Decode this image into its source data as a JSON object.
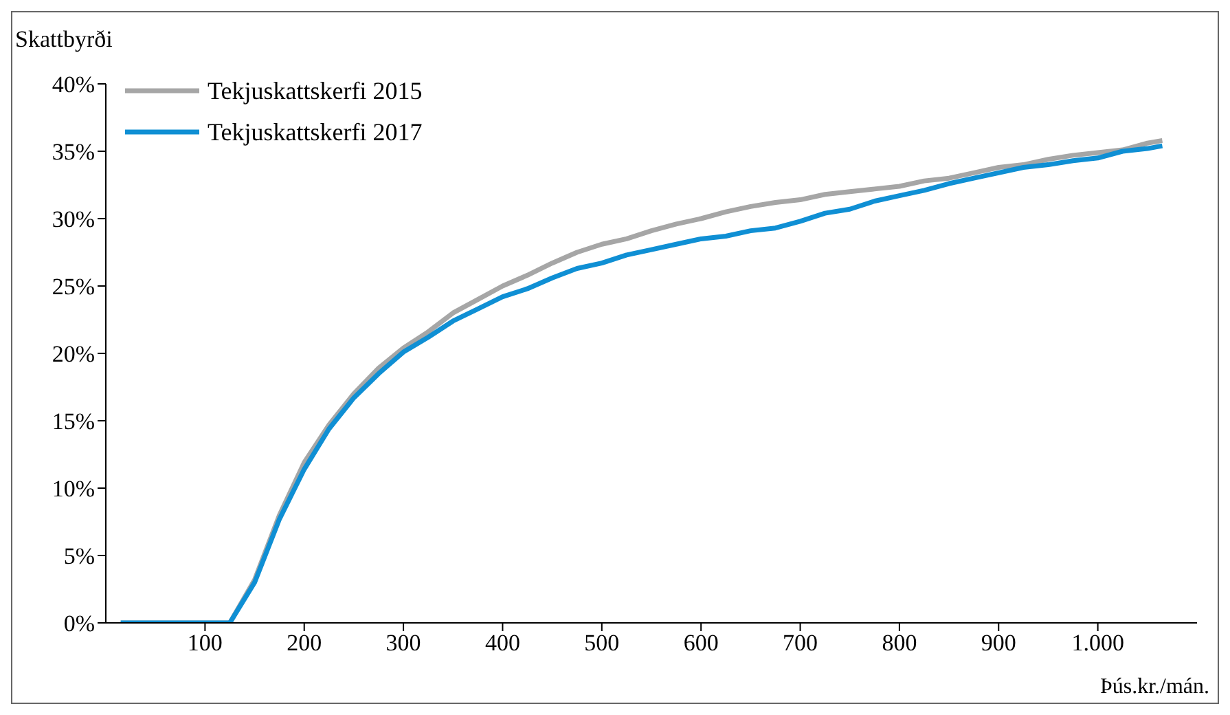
{
  "chart_data": {
    "type": "line",
    "ylabel": "Skattbyrði",
    "xlabel": "Þús.kr./mán.",
    "x": [
      15,
      125,
      150,
      175,
      200,
      225,
      250,
      275,
      300,
      325,
      350,
      375,
      400,
      425,
      450,
      475,
      500,
      525,
      550,
      575,
      600,
      625,
      650,
      675,
      700,
      725,
      750,
      775,
      800,
      825,
      850,
      875,
      900,
      925,
      950,
      975,
      1000,
      1025,
      1050,
      1065
    ],
    "series": [
      {
        "name": "Tekjuskattskerfi 2015",
        "color": "#a6a6a6",
        "values": [
          0,
          0,
          3.2,
          8.0,
          11.9,
          14.7,
          17.0,
          18.9,
          20.4,
          21.6,
          23.0,
          24.0,
          25.0,
          25.8,
          26.7,
          27.5,
          28.1,
          28.5,
          29.1,
          29.6,
          30.0,
          30.5,
          30.9,
          31.2,
          31.4,
          31.8,
          32.0,
          32.2,
          32.4,
          32.8,
          33.0,
          33.4,
          33.8,
          34.0,
          34.4,
          34.7,
          34.9,
          35.1,
          35.6,
          35.8
        ]
      },
      {
        "name": "Tekjuskattskerfi 2017",
        "color": "#0f8fd4",
        "values": [
          0,
          0,
          3.0,
          7.7,
          11.4,
          14.4,
          16.7,
          18.5,
          20.1,
          21.2,
          22.4,
          23.3,
          24.2,
          24.8,
          25.6,
          26.3,
          26.7,
          27.3,
          27.7,
          28.1,
          28.5,
          28.7,
          29.1,
          29.3,
          29.8,
          30.4,
          30.7,
          31.3,
          31.7,
          32.1,
          32.6,
          33.0,
          33.4,
          33.8,
          34.0,
          34.3,
          34.5,
          35.0,
          35.2,
          35.4
        ]
      }
    ],
    "xlim": [
      0,
      1100
    ],
    "xticks": [
      100,
      200,
      300,
      400,
      500,
      600,
      700,
      800,
      900,
      {
        "value": 1000,
        "label": "1.000"
      }
    ],
    "ylim": [
      0,
      40
    ],
    "yticks": [
      {
        "value": 0,
        "label": "0%"
      },
      {
        "value": 5,
        "label": "5%"
      },
      {
        "value": 10,
        "label": "10%"
      },
      {
        "value": 15,
        "label": "15%"
      },
      {
        "value": 20,
        "label": "20%"
      },
      {
        "value": 25,
        "label": "25%"
      },
      {
        "value": 30,
        "label": "30%"
      },
      {
        "value": 35,
        "label": "35%"
      },
      {
        "value": 40,
        "label": "40%"
      }
    ],
    "grid": false,
    "legend": "top left",
    "marker": "none",
    "line_style": "solid"
  }
}
